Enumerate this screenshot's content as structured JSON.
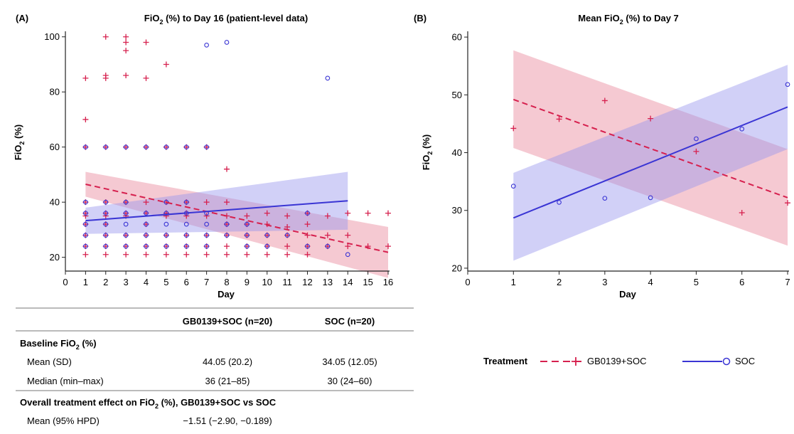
{
  "chart_data": [
    {
      "type": "scatter",
      "panel_label": "(A)",
      "title": "FiO",
      "title_sub": "2",
      "title_rest": " (%) to Day 16 (patient-level data)",
      "xlabel": "Day",
      "ylabel": "FiO",
      "ylabel_sub": "2",
      "ylabel_rest": " (%)",
      "xlim": [
        0,
        16
      ],
      "ylim": [
        15,
        102
      ],
      "xticks": [
        0,
        1,
        2,
        3,
        4,
        5,
        6,
        7,
        8,
        9,
        10,
        11,
        12,
        13,
        14,
        15,
        16
      ],
      "yticks": [
        20,
        40,
        60,
        80,
        100
      ],
      "series": [
        {
          "name": "GB0139+SOC",
          "marker": "plus",
          "color": "#d6204e",
          "points": [
            [
              1,
              85
            ],
            [
              1,
              70
            ],
            [
              1,
              60
            ],
            [
              1,
              40
            ],
            [
              1,
              36
            ],
            [
              1,
              35
            ],
            [
              1,
              32
            ],
            [
              1,
              28
            ],
            [
              1,
              24
            ],
            [
              1,
              21
            ],
            [
              2,
              100
            ],
            [
              2,
              86
            ],
            [
              2,
              85
            ],
            [
              2,
              60
            ],
            [
              2,
              40
            ],
            [
              2,
              36
            ],
            [
              2,
              35
            ],
            [
              2,
              32
            ],
            [
              2,
              28
            ],
            [
              2,
              24
            ],
            [
              2,
              21
            ],
            [
              3,
              100
            ],
            [
              3,
              98
            ],
            [
              3,
              95
            ],
            [
              3,
              86
            ],
            [
              3,
              60
            ],
            [
              3,
              40
            ],
            [
              3,
              36
            ],
            [
              3,
              35
            ],
            [
              3,
              28
            ],
            [
              3,
              24
            ],
            [
              3,
              21
            ],
            [
              4,
              98
            ],
            [
              4,
              85
            ],
            [
              4,
              60
            ],
            [
              4,
              40
            ],
            [
              4,
              36
            ],
            [
              4,
              32
            ],
            [
              4,
              28
            ],
            [
              4,
              24
            ],
            [
              4,
              21
            ],
            [
              5,
              90
            ],
            [
              5,
              60
            ],
            [
              5,
              40
            ],
            [
              5,
              36
            ],
            [
              5,
              35
            ],
            [
              5,
              28
            ],
            [
              5,
              24
            ],
            [
              5,
              21
            ],
            [
              6,
              60
            ],
            [
              6,
              40
            ],
            [
              6,
              36
            ],
            [
              6,
              35
            ],
            [
              6,
              28
            ],
            [
              6,
              24
            ],
            [
              6,
              21
            ],
            [
              7,
              60
            ],
            [
              7,
              40
            ],
            [
              7,
              35
            ],
            [
              7,
              28
            ],
            [
              7,
              24
            ],
            [
              7,
              21
            ],
            [
              8,
              52
            ],
            [
              8,
              40
            ],
            [
              8,
              35
            ],
            [
              8,
              32
            ],
            [
              8,
              28
            ],
            [
              8,
              24
            ],
            [
              8,
              21
            ],
            [
              9,
              35
            ],
            [
              9,
              32
            ],
            [
              9,
              28
            ],
            [
              9,
              24
            ],
            [
              9,
              21
            ],
            [
              10,
              36
            ],
            [
              10,
              32
            ],
            [
              10,
              28
            ],
            [
              10,
              24
            ],
            [
              10,
              21
            ],
            [
              11,
              35
            ],
            [
              11,
              31
            ],
            [
              11,
              28
            ],
            [
              11,
              24
            ],
            [
              11,
              21
            ],
            [
              12,
              36
            ],
            [
              12,
              32
            ],
            [
              12,
              28
            ],
            [
              12,
              24
            ],
            [
              12,
              21
            ],
            [
              13,
              35
            ],
            [
              13,
              28
            ],
            [
              13,
              24
            ],
            [
              14,
              36
            ],
            [
              14,
              28
            ],
            [
              14,
              24
            ],
            [
              15,
              36
            ],
            [
              15,
              24
            ],
            [
              16,
              36
            ],
            [
              16,
              24
            ]
          ]
        },
        {
          "name": "SOC",
          "marker": "circle",
          "color": "#3a35d4",
          "points": [
            [
              1,
              60
            ],
            [
              1,
              40
            ],
            [
              1,
              36
            ],
            [
              1,
              32
            ],
            [
              1,
              28
            ],
            [
              1,
              24
            ],
            [
              2,
              60
            ],
            [
              2,
              40
            ],
            [
              2,
              36
            ],
            [
              2,
              32
            ],
            [
              2,
              28
            ],
            [
              2,
              24
            ],
            [
              3,
              60
            ],
            [
              3,
              40
            ],
            [
              3,
              36
            ],
            [
              3,
              32
            ],
            [
              3,
              28
            ],
            [
              3,
              24
            ],
            [
              4,
              60
            ],
            [
              4,
              36
            ],
            [
              4,
              32
            ],
            [
              4,
              28
            ],
            [
              4,
              24
            ],
            [
              5,
              60
            ],
            [
              5,
              40
            ],
            [
              5,
              36
            ],
            [
              5,
              32
            ],
            [
              5,
              28
            ],
            [
              5,
              24
            ],
            [
              6,
              60
            ],
            [
              6,
              40
            ],
            [
              6,
              36
            ],
            [
              6,
              32
            ],
            [
              6,
              28
            ],
            [
              6,
              24
            ],
            [
              7,
              97
            ],
            [
              7,
              60
            ],
            [
              7,
              36
            ],
            [
              7,
              32
            ],
            [
              7,
              28
            ],
            [
              7,
              24
            ],
            [
              8,
              98
            ],
            [
              8,
              32
            ],
            [
              8,
              28
            ],
            [
              9,
              32
            ],
            [
              9,
              28
            ],
            [
              9,
              24
            ],
            [
              10,
              28
            ],
            [
              10,
              24
            ],
            [
              11,
              28
            ],
            [
              12,
              36
            ],
            [
              12,
              24
            ],
            [
              13,
              85
            ],
            [
              13,
              24
            ],
            [
              14,
              21
            ]
          ]
        }
      ],
      "fits": [
        {
          "name": "GB0139+SOC",
          "x": [
            1,
            16
          ],
          "y": [
            46.5,
            21.8
          ],
          "lower": [
            42,
            12.5
          ],
          "upper": [
            51,
            31
          ],
          "style": "dashed",
          "color": "#d6204e",
          "band_color": "#e8879b"
        },
        {
          "name": "SOC",
          "x": [
            1,
            14
          ],
          "y": [
            33.3,
            40.5
          ],
          "lower": [
            28.5,
            30
          ],
          "upper": [
            38,
            51
          ],
          "style": "solid",
          "color": "#3a35d4",
          "band_color": "#9a97ee"
        }
      ]
    },
    {
      "type": "line",
      "panel_label": "(B)",
      "title": "Mean FiO",
      "title_sub": "2",
      "title_rest": " (%) to Day 7",
      "xlabel": "Day",
      "ylabel": "FiO",
      "ylabel_sub": "2",
      "ylabel_rest": " (%)",
      "xlim": [
        0,
        7
      ],
      "ylim": [
        19.5,
        61
      ],
      "xticks": [
        0,
        1,
        2,
        3,
        4,
        5,
        6,
        7
      ],
      "yticks": [
        20,
        30,
        40,
        50,
        60
      ],
      "series": [
        {
          "name": "GB0139+SOC",
          "marker": "plus",
          "color": "#d6204e",
          "points": [
            [
              1,
              44.2
            ],
            [
              2,
              45.8
            ],
            [
              3,
              49
            ],
            [
              4,
              45.9
            ],
            [
              5,
              40.2
            ],
            [
              6,
              29.6
            ],
            [
              7,
              31.3
            ]
          ]
        },
        {
          "name": "SOC",
          "marker": "circle",
          "color": "#3a35d4",
          "points": [
            [
              1,
              34.2
            ],
            [
              2,
              31.4
            ],
            [
              3,
              32.1
            ],
            [
              4,
              32.2
            ],
            [
              5,
              42.4
            ],
            [
              6,
              44.1
            ],
            [
              7,
              51.8
            ]
          ]
        }
      ],
      "fits": [
        {
          "name": "GB0139+SOC",
          "x": [
            1,
            7
          ],
          "y": [
            49.2,
            32.2
          ],
          "lower": [
            40.8,
            23.9
          ],
          "upper": [
            57.7,
            40.6
          ],
          "style": "dashed",
          "color": "#d6204e",
          "band_color": "#e8879b"
        },
        {
          "name": "SOC",
          "x": [
            1,
            7
          ],
          "y": [
            28.7,
            47.9
          ],
          "lower": [
            21.3,
            40.6
          ],
          "upper": [
            36.5,
            55.2
          ],
          "style": "solid",
          "color": "#3a35d4",
          "band_color": "#9a97ee"
        }
      ]
    }
  ],
  "legend": {
    "title": "Treatment",
    "items": [
      {
        "label": "GB0139+SOC",
        "style": "dashed",
        "marker": "plus",
        "color": "#d6204e"
      },
      {
        "label": "SOC",
        "style": "solid",
        "marker": "circle",
        "color": "#3a35d4"
      }
    ]
  },
  "table": {
    "col1_header": "GB0139+SOC (n=20)",
    "col2_header": "SOC (n=20)",
    "section1_title": "Baseline FiO",
    "section1_title_sub": "2",
    "section1_title_rest": " (%)",
    "rows1": [
      {
        "label": "Mean (SD)",
        "col1": "44.05 (20.2)",
        "col2": "34.05 (12.05)"
      },
      {
        "label": "Median (min–max)",
        "col1": "36 (21–85)",
        "col2": "30 (24–60)"
      }
    ],
    "section2_title": "Overall treatment effect on FiO",
    "section2_title_sub": "2",
    "section2_title_rest": " (%), GB0139+SOC vs SOC",
    "rows2": [
      {
        "label": "Mean (95% HPD)",
        "col1": "−1.51 (−2.90, −0.189)"
      }
    ]
  }
}
